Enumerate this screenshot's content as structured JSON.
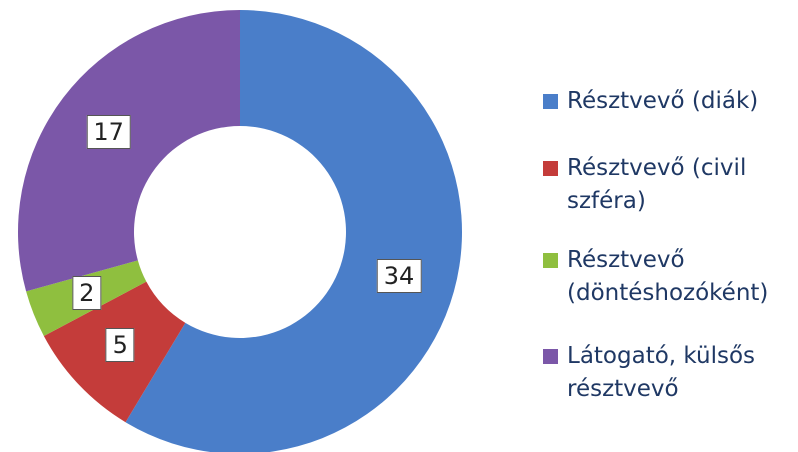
{
  "chart_data": {
    "type": "donut",
    "categories": [
      "Résztvevő (diák)",
      "Résztvevő (civil szféra)",
      "Résztvevő (döntéshozóként)",
      "Látogató, külsős résztvevő"
    ],
    "values": [
      34,
      5,
      2,
      17
    ],
    "colors": [
      "#4a7ec9",
      "#c43c3a",
      "#8fbf3f",
      "#7b57a8"
    ],
    "legend": "right"
  }
}
